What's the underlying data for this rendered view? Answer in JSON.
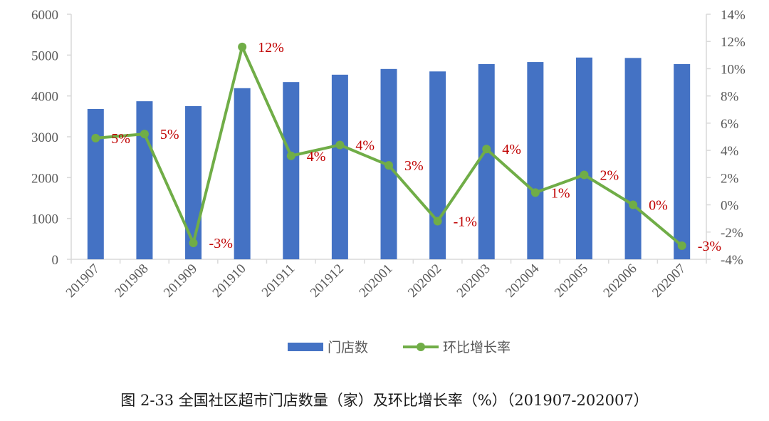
{
  "chart_data": {
    "type": "bar",
    "categories": [
      "201907",
      "201908",
      "201909",
      "201910",
      "201911",
      "201912",
      "202001",
      "202002",
      "202003",
      "202004",
      "202005",
      "202006",
      "202007"
    ],
    "series": [
      {
        "name": "门店数",
        "type": "bar",
        "axis": "left",
        "color": "#4472c4",
        "values": [
          3680,
          3870,
          3750,
          4190,
          4340,
          4520,
          4660,
          4600,
          4780,
          4830,
          4940,
          4930,
          4780
        ]
      },
      {
        "name": "环比增长率",
        "type": "line",
        "axis": "right",
        "color": "#70ad47",
        "values": [
          4.9,
          5.2,
          -2.8,
          11.6,
          3.6,
          4.4,
          2.9,
          -1.2,
          4.1,
          0.9,
          2.2,
          0.0,
          -3.0
        ],
        "data_labels": [
          "5%",
          "5%",
          "-3%",
          "12%",
          "4%",
          "4%",
          "3%",
          "-1%",
          "4%",
          "1%",
          "2%",
          "0%",
          "-3%"
        ]
      }
    ],
    "ylim_left": [
      0,
      6000
    ],
    "yticks_left": [
      "0",
      "1000",
      "2000",
      "3000",
      "4000",
      "5000",
      "6000"
    ],
    "ylim_right": [
      -4,
      14
    ],
    "yticks_right": [
      "-4%",
      "-2%",
      "0%",
      "2%",
      "4%",
      "6%",
      "8%",
      "10%",
      "12%",
      "14%"
    ],
    "legend_position": "bottom",
    "title": "图 2-33 全国社区超市门店数量（家）及环比增长率（%）（201907-202007）",
    "grid": false
  }
}
